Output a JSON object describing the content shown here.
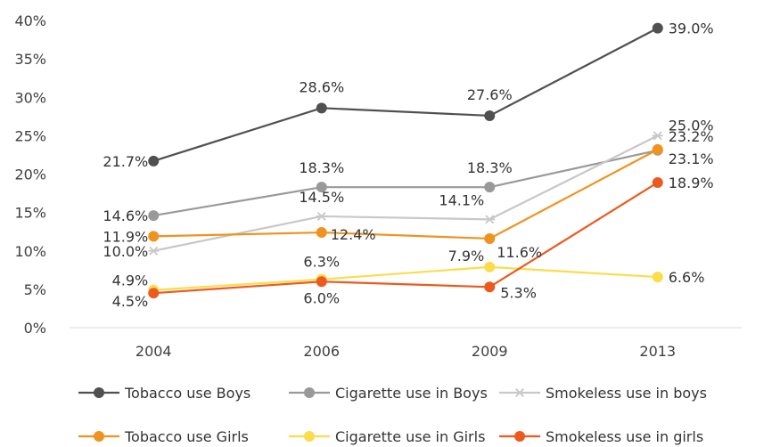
{
  "chart_data": {
    "type": "line",
    "title": "",
    "xlabel": "",
    "ylabel": "",
    "categories": [
      "2004",
      "2006",
      "2009",
      "2013"
    ],
    "ylim": [
      0,
      40
    ],
    "yticks": [
      0,
      5,
      10,
      15,
      20,
      25,
      30,
      35,
      40
    ],
    "ytick_labels": [
      "0%",
      "5%",
      "10%",
      "15%",
      "20%",
      "25%",
      "30%",
      "35%",
      "40%"
    ],
    "grid": false,
    "legend_position": "bottom",
    "series": [
      {
        "name": "Tobacco use Boys",
        "values": [
          21.7,
          28.6,
          27.6,
          39.0
        ],
        "labels": [
          "21.7%",
          "28.6%",
          "27.6%",
          "39.0%"
        ],
        "color": "#505050",
        "marker": "circle"
      },
      {
        "name": "Cigarette use in Boys",
        "values": [
          14.6,
          18.3,
          18.3,
          23.1
        ],
        "labels": [
          "14.6%",
          "18.3%",
          "18.3%",
          "23.1%"
        ],
        "color": "#999999",
        "marker": "circle"
      },
      {
        "name": "Smokeless use in boys",
        "values": [
          10.0,
          14.5,
          14.1,
          25.0
        ],
        "labels": [
          "10.0%",
          "14.5%",
          "14.1%",
          "25.0%"
        ],
        "color": "#c8c8c8",
        "marker": "star"
      },
      {
        "name": "Tobacco use Girls",
        "values": [
          11.9,
          12.4,
          11.6,
          23.2
        ],
        "labels": [
          "11.9%",
          "12.4%",
          "11.6%",
          "23.2%"
        ],
        "color": "#f0921e",
        "marker": "circle"
      },
      {
        "name": "Cigarette use in Girls",
        "values": [
          4.9,
          6.3,
          7.9,
          6.6
        ],
        "labels": [
          "4.9%",
          "6.3%",
          "7.9%",
          "6.6%"
        ],
        "color": "#fbdc4a",
        "marker": "circle"
      },
      {
        "name": "Smokeless use in girls",
        "values": [
          4.5,
          6.0,
          5.3,
          18.9
        ],
        "labels": [
          "4.5%",
          "6.0%",
          "5.3%",
          "18.9%"
        ],
        "color": "#ec5a1e",
        "marker": "circle"
      }
    ]
  }
}
